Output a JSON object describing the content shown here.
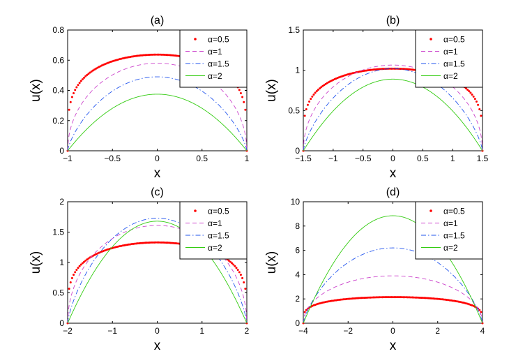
{
  "chart_data": [
    {
      "type": "line",
      "title": "(a)",
      "xlabel": "x",
      "ylabel": "u(x)",
      "xlim": [
        -1,
        1
      ],
      "ylim": [
        0,
        0.8
      ],
      "xticks": [
        -1,
        -0.5,
        0,
        0.5,
        1
      ],
      "xtick_labels": [
        "−1",
        "−0.5",
        "0",
        "0.5",
        "1"
      ],
      "yticks": [
        0,
        0.2,
        0.4,
        0.6,
        0.8
      ],
      "ytick_labels": [
        "0",
        "0.2",
        "0.4",
        "0.6",
        "0.8"
      ],
      "legend_position": "top-right",
      "series": [
        {
          "name": "α=0.5",
          "peak": 0.637,
          "exponent": 0.25,
          "color": "#ff0000",
          "style": "dots"
        },
        {
          "name": "α=1",
          "peak": 0.58,
          "exponent": 0.5,
          "color": "#cc44cc",
          "style": "dashed"
        },
        {
          "name": "α=1.5",
          "peak": 0.49,
          "exponent": 0.75,
          "color": "#2255ee",
          "style": "dashdot"
        },
        {
          "name": "α=2",
          "peak": 0.375,
          "exponent": 1.0,
          "color": "#33cc11",
          "style": "solid"
        }
      ]
    },
    {
      "type": "line",
      "title": "(b)",
      "xlabel": "x",
      "ylabel": "u(x)",
      "xlim": [
        -1.5,
        1.5
      ],
      "ylim": [
        0,
        1.5
      ],
      "xticks": [
        -1.5,
        -1,
        -0.5,
        0,
        0.5,
        1,
        1.5
      ],
      "xtick_labels": [
        "−1.5",
        "−1",
        "−0.5",
        "0",
        "0.5",
        "1",
        "1.5"
      ],
      "yticks": [
        0,
        0.5,
        1,
        1.5
      ],
      "ytick_labels": [
        "0",
        "0.5",
        "1",
        "1.5"
      ],
      "legend_position": "top-right",
      "series": [
        {
          "name": "α=0.5",
          "peak": 1.02,
          "exponent": 0.25,
          "color": "#ff0000",
          "style": "dots"
        },
        {
          "name": "α=1",
          "peak": 1.065,
          "exponent": 0.5,
          "color": "#cc44cc",
          "style": "dashed"
        },
        {
          "name": "α=1.5",
          "peak": 1.02,
          "exponent": 0.75,
          "color": "#2255ee",
          "style": "dashdot"
        },
        {
          "name": "α=2",
          "peak": 0.89,
          "exponent": 1.0,
          "color": "#33cc11",
          "style": "solid"
        }
      ]
    },
    {
      "type": "line",
      "title": "(c)",
      "xlabel": "x",
      "ylabel": "u(x)",
      "xlim": [
        -2,
        2
      ],
      "ylim": [
        0,
        2
      ],
      "xticks": [
        -2,
        -1,
        0,
        1,
        2
      ],
      "xtick_labels": [
        "−2",
        "−1",
        "0",
        "1",
        "2"
      ],
      "yticks": [
        0,
        0.5,
        1,
        1.5,
        2
      ],
      "ytick_labels": [
        "0",
        "0.5",
        "1",
        "1.5",
        "2"
      ],
      "legend_position": "top-right",
      "series": [
        {
          "name": "α=0.5",
          "peak": 1.33,
          "exponent": 0.25,
          "color": "#ff0000",
          "style": "dots"
        },
        {
          "name": "α=1",
          "peak": 1.61,
          "exponent": 0.5,
          "color": "#cc44cc",
          "style": "dashed"
        },
        {
          "name": "α=1.5",
          "peak": 1.73,
          "exponent": 0.75,
          "color": "#2255ee",
          "style": "dashdot"
        },
        {
          "name": "α=2",
          "peak": 1.68,
          "exponent": 1.0,
          "color": "#33cc11",
          "style": "solid"
        }
      ]
    },
    {
      "type": "line",
      "title": "(d)",
      "xlabel": "x",
      "ylabel": "u(x)",
      "xlim": [
        -4,
        4
      ],
      "ylim": [
        0,
        10
      ],
      "xticks": [
        -4,
        -2,
        0,
        2,
        4
      ],
      "xtick_labels": [
        "−4",
        "−2",
        "0",
        "2",
        "4"
      ],
      "yticks": [
        0,
        2,
        4,
        6,
        8,
        10
      ],
      "ytick_labels": [
        "0",
        "2",
        "4",
        "6",
        "8",
        "10"
      ],
      "legend_position": "top-right",
      "series": [
        {
          "name": "α=0.5",
          "peak": 2.15,
          "exponent": 0.25,
          "color": "#ff0000",
          "style": "dots"
        },
        {
          "name": "α=1",
          "peak": 3.9,
          "exponent": 0.5,
          "color": "#cc44cc",
          "style": "dashed"
        },
        {
          "name": "α=1.5",
          "peak": 6.2,
          "exponent": 0.75,
          "color": "#2255ee",
          "style": "dashdot"
        },
        {
          "name": "α=2",
          "peak": 8.85,
          "exponent": 1.0,
          "color": "#33cc11",
          "style": "solid"
        }
      ]
    }
  ]
}
